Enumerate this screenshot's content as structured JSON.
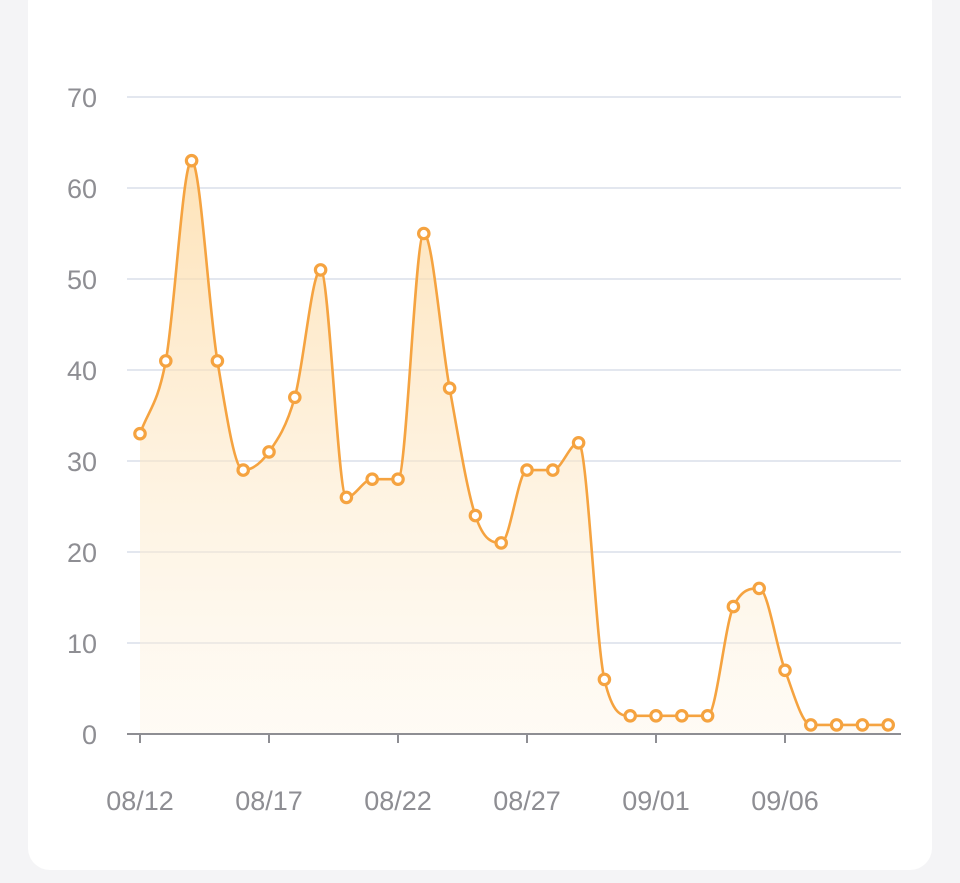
{
  "chart_data": {
    "type": "area",
    "title": "",
    "xlabel": "",
    "ylabel": "",
    "ylim": [
      0,
      70
    ],
    "y_ticks": [
      "0",
      "10",
      "20",
      "30",
      "40",
      "50",
      "60",
      "70"
    ],
    "x_tick_labels": [
      "08/12",
      "08/17",
      "08/22",
      "08/27",
      "09/01",
      "09/06"
    ],
    "x_tick_positions": [
      0,
      5,
      10,
      15,
      20,
      25
    ],
    "grid": true,
    "line_color": "#f5a340",
    "fill_color": "#fde7bf",
    "categories": [
      "08/12",
      "08/13",
      "08/14",
      "08/15",
      "08/16",
      "08/17",
      "08/18",
      "08/19",
      "08/20",
      "08/21",
      "08/22",
      "08/23",
      "08/24",
      "08/25",
      "08/26",
      "08/27",
      "08/28",
      "08/29",
      "08/30",
      "08/31",
      "09/01",
      "09/02",
      "09/03",
      "09/04",
      "09/05",
      "09/06",
      "09/07",
      "09/08",
      "09/09",
      "09/10"
    ],
    "values": [
      33,
      41,
      63,
      41,
      29,
      31,
      37,
      51,
      26,
      28,
      28,
      55,
      38,
      24,
      21,
      29,
      29,
      32,
      6,
      2,
      2,
      2,
      2,
      14,
      16,
      7,
      1,
      1,
      1,
      1
    ]
  }
}
